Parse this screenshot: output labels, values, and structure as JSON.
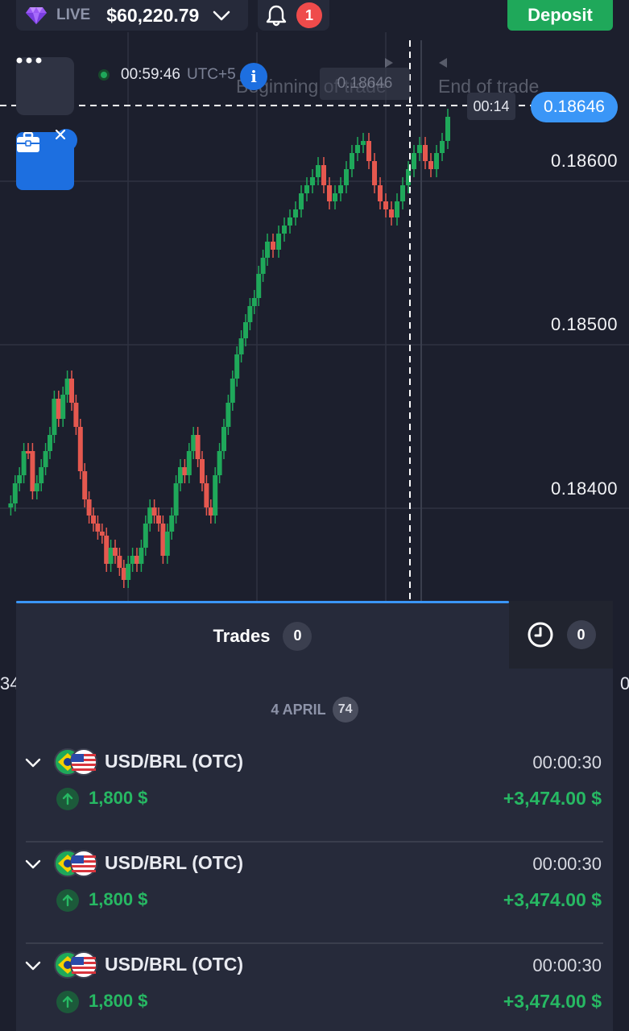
{
  "header": {
    "account_mode": "LIVE",
    "balance": "$60,220.79",
    "notification_count": "1",
    "deposit_label": "Deposit"
  },
  "chart": {
    "clock_time": "00:59:46",
    "timezone": "UTC+5",
    "beginning_label": "Beginning of trade",
    "end_label": "End of trade",
    "ghost_price": "0.18646",
    "current_price": "0.18646",
    "countdown": "00:14",
    "price_levels": [
      "0.18600",
      "0.18500",
      "0.18400"
    ],
    "left_edge_label": "34",
    "right_edge_label": "0",
    "colors": {
      "up": "#1fa85a",
      "down": "#e5584f",
      "accent": "#3a96f7"
    }
  },
  "trades_panel": {
    "tab_trades_label": "Trades",
    "trades_count": "0",
    "history_count": "0",
    "date_label": "4 APRIL",
    "date_count": "74",
    "items": [
      {
        "asset": "USD/BRL (OTC)",
        "duration": "00:00:30",
        "stake": "1,800 $",
        "payout": "+3,474.00 $",
        "direction": "up"
      },
      {
        "asset": "USD/BRL (OTC)",
        "duration": "00:00:30",
        "stake": "1,800 $",
        "payout": "+3,474.00 $",
        "direction": "up"
      },
      {
        "asset": "USD/BRL (OTC)",
        "duration": "00:00:30",
        "stake": "1,800 $",
        "payout": "+3,474.00 $",
        "direction": "up"
      }
    ]
  }
}
